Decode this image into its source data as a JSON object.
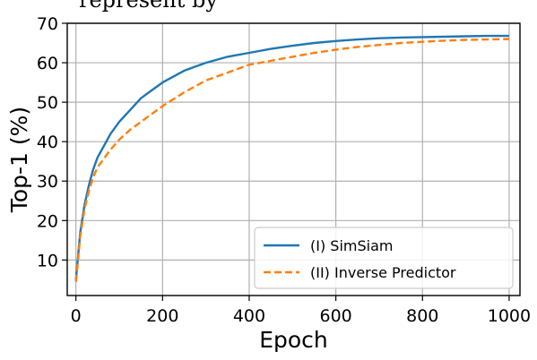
{
  "page": {
    "top_partial_text": "represent by"
  },
  "chart_data": {
    "type": "line",
    "title": "",
    "xlabel": "Epoch",
    "ylabel": "Top-1 (%)",
    "xlim": [
      -20,
      1025
    ],
    "ylim": [
      1,
      70
    ],
    "xticks": [
      0,
      200,
      400,
      600,
      800,
      1000
    ],
    "yticks": [
      10,
      20,
      30,
      40,
      50,
      60,
      70
    ],
    "grid": true,
    "legend_position": "lower right",
    "series": [
      {
        "name": "(I) SimSiam",
        "color": "#1f77b4",
        "linestyle": "solid",
        "x": [
          0,
          5,
          10,
          20,
          30,
          40,
          50,
          60,
          80,
          100,
          125,
          150,
          175,
          200,
          250,
          300,
          350,
          400,
          450,
          500,
          550,
          600,
          650,
          700,
          750,
          800,
          850,
          900,
          950,
          1000
        ],
        "y": [
          5,
          11,
          17,
          24,
          29,
          33,
          36,
          38,
          42,
          45,
          48,
          51,
          53,
          55,
          58,
          60,
          61.5,
          62.5,
          63.5,
          64.3,
          65,
          65.5,
          65.9,
          66.2,
          66.4,
          66.5,
          66.6,
          66.7,
          66.8,
          66.8
        ]
      },
      {
        "name": "(II) Inverse Predictor",
        "color": "#ff7f0e",
        "linestyle": "dashed",
        "x": [
          0,
          5,
          10,
          20,
          30,
          40,
          50,
          60,
          80,
          100,
          125,
          150,
          175,
          200,
          250,
          300,
          350,
          400,
          450,
          500,
          550,
          600,
          650,
          700,
          750,
          800,
          850,
          900,
          950,
          1000
        ],
        "y": [
          4.5,
          10,
          16,
          23,
          27.5,
          31,
          33.5,
          35,
          38,
          40.5,
          43,
          45,
          47,
          49,
          52.5,
          55.5,
          57.5,
          59.5,
          60.5,
          61.5,
          62.5,
          63.3,
          64,
          64.5,
          65,
          65.3,
          65.6,
          65.8,
          65.9,
          66
        ]
      }
    ]
  }
}
